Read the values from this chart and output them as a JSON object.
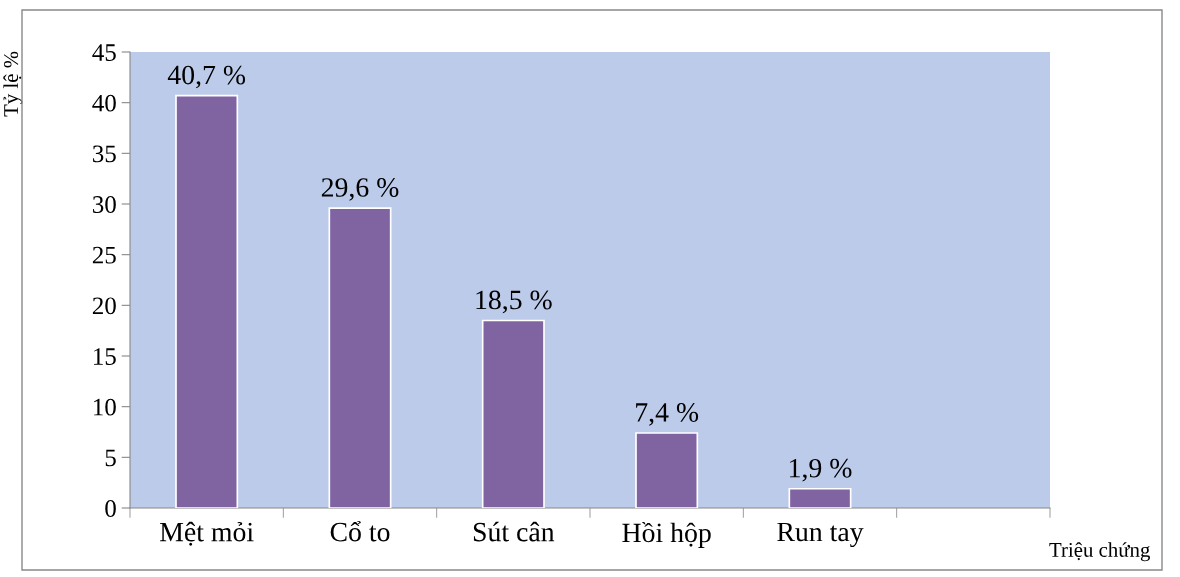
{
  "chart_data": {
    "type": "bar",
    "xlabel": "Triệu chứng",
    "ylabel": "Tỷ lệ %",
    "categories": [
      "Mệt mỏi",
      "Cổ to",
      "Sút cân",
      "Hồi hộp",
      "Run tay",
      null
    ],
    "values": [
      40.7,
      29.6,
      18.5,
      7.4,
      1.9,
      null
    ],
    "value_labels": [
      "40,7 %",
      "29,6 %",
      "18,5 %",
      "7,4 %",
      "1,9 %",
      null
    ],
    "color": "#8064a2",
    "ylim": [
      0,
      45
    ],
    "yticks": [
      0,
      5,
      10,
      15,
      20,
      25,
      30,
      35,
      40,
      45
    ],
    "grid": false,
    "legend": false
  }
}
